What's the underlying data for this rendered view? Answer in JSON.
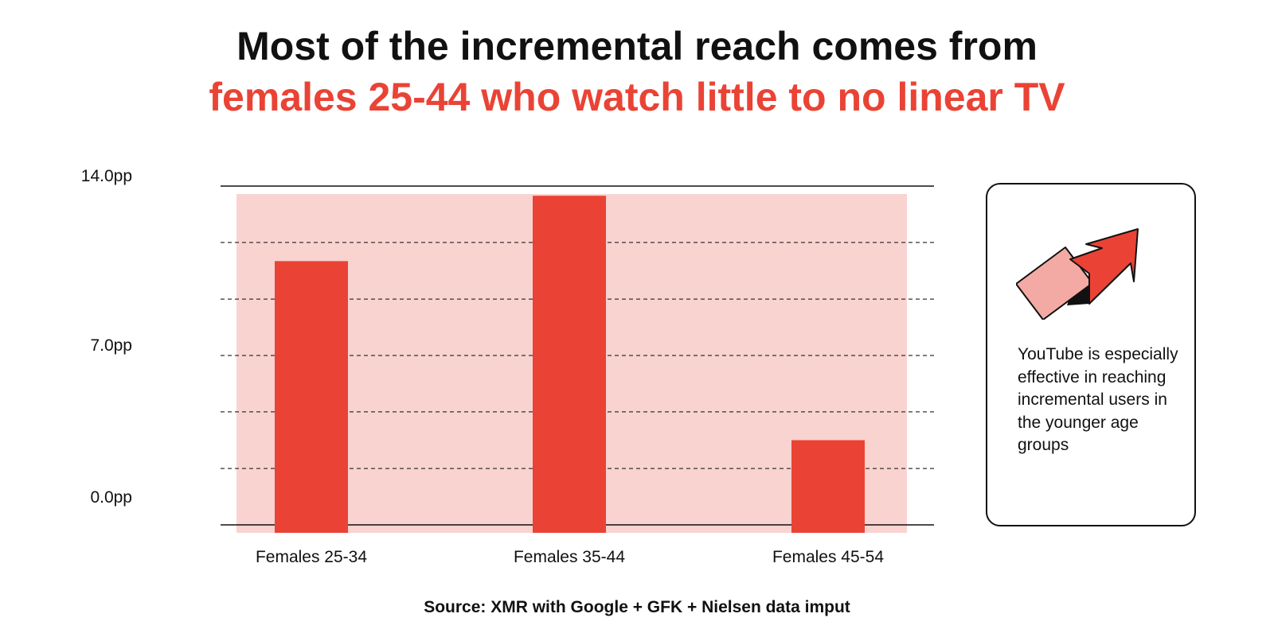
{
  "title": {
    "line1": "Most of the incremental reach comes from",
    "line2": "females 25-44 who watch little to no linear TV"
  },
  "colors": {
    "accent": "#ea4335",
    "highlight_band": "#f9d3d0",
    "arrow_tail": "#f4aaa4",
    "text": "#111111"
  },
  "chart_data": {
    "type": "bar",
    "categories": [
      "Females 25-34",
      "Females 35-44",
      "Females 45-54"
    ],
    "values": [
      10.9,
      13.6,
      3.5
    ],
    "ylim": [
      0,
      14
    ],
    "gridlines": [
      2.33,
      4.67,
      7.0,
      9.33,
      11.67
    ],
    "ytick_labels": [
      {
        "value": 14,
        "label": "14.0pp"
      },
      {
        "value": 7,
        "label": "7.0pp"
      },
      {
        "value": 0,
        "label": "0.0pp"
      }
    ],
    "title": "",
    "xlabel": "",
    "ylabel": "",
    "grid": true,
    "legend": "none"
  },
  "callout": {
    "icon": "trend-arrow-icon",
    "text": "YouTube is especially effective in reaching incremental users in the younger age groups"
  },
  "source": "Source: XMR with Google + GFK + Nielsen data imput"
}
